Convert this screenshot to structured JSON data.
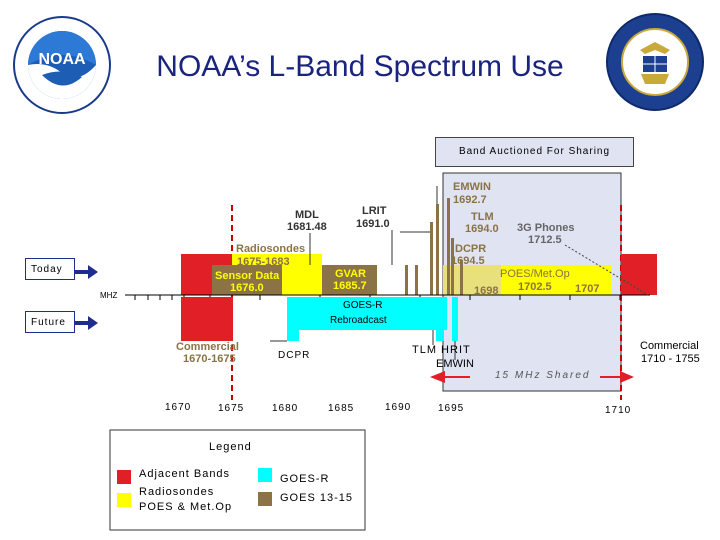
{
  "title": "NOAA’s L-Band Spectrum Use",
  "logos": {
    "left_ring_text": "NATIONAL OCEANIC AND ATMOSPHERIC ADMINISTRATION U.S. DEPARTMENT OF COMMERCE",
    "left_center_text": "NOAA",
    "right_ring_text": "DEPARTMENT OF COMMERCE UNITED STATES OF AMERICA"
  },
  "band_auctioned": "Band Auctioned For Sharing",
  "rows": {
    "today": "Today",
    "future": "Future",
    "mhz": "MHZ"
  },
  "labels": {
    "emwin": "EMWIN",
    "emwin_freq": "1692.7",
    "lrit": "LRIT",
    "lrit_freq": "1691.0",
    "mdl": "MDL",
    "mdl_freq": "1681.48",
    "tlm": "TLM",
    "tlm_freq": "1694.0",
    "phones": "3G Phones",
    "phones_freq": "1712.5",
    "radiosondes": "Radiosondes",
    "radiosondes_range": "1675-1683",
    "dcpr": "DCPR",
    "dcpr_freq": "1694.5",
    "sensor": "Sensor Data",
    "sensor_freq": "1676.0",
    "gvar": "GVAR",
    "gvar_freq": "1685.7",
    "poes": "POES/Met.Op",
    "poes_f1": "1698",
    "poes_f2": "1702.5",
    "poes_f3": "1707",
    "goesr_a": "GOES-R",
    "goesr_b": "Rebroadcast",
    "commercial_left_a": "Commercial",
    "commercial_left_b": "1670-1675",
    "dcpr_future": "DCPR",
    "tlm_hrit": "TLM HRIT",
    "emwin_future": "EMWIN",
    "shared": "15 MHz Shared",
    "commercial_right_a": "Commercial",
    "commercial_right_b": "1710 - 1755"
  },
  "axis_ticks": [
    "1670",
    "1675",
    "1680",
    "1685",
    "1690",
    "1695",
    "1710"
  ],
  "legend": {
    "title": "Legend",
    "items": [
      {
        "label": "Adjacent Bands",
        "color": "#e01f26"
      },
      {
        "label": "Radiosondes\nPOES & Met.Op",
        "color": "#ffff00"
      },
      {
        "label": "GOES-R",
        "color": "#00ffff"
      },
      {
        "label": "GOES 13-15",
        "color": "#8b7346"
      }
    ]
  },
  "colors": {
    "title": "#1a237e",
    "adjacent": "#e01f26",
    "radiosondes": "#ffff00",
    "goesr": "#00ffff",
    "goes": "#8b7346",
    "shared_band": "#dfe3f2",
    "arrow": "#1f2d8f"
  }
}
